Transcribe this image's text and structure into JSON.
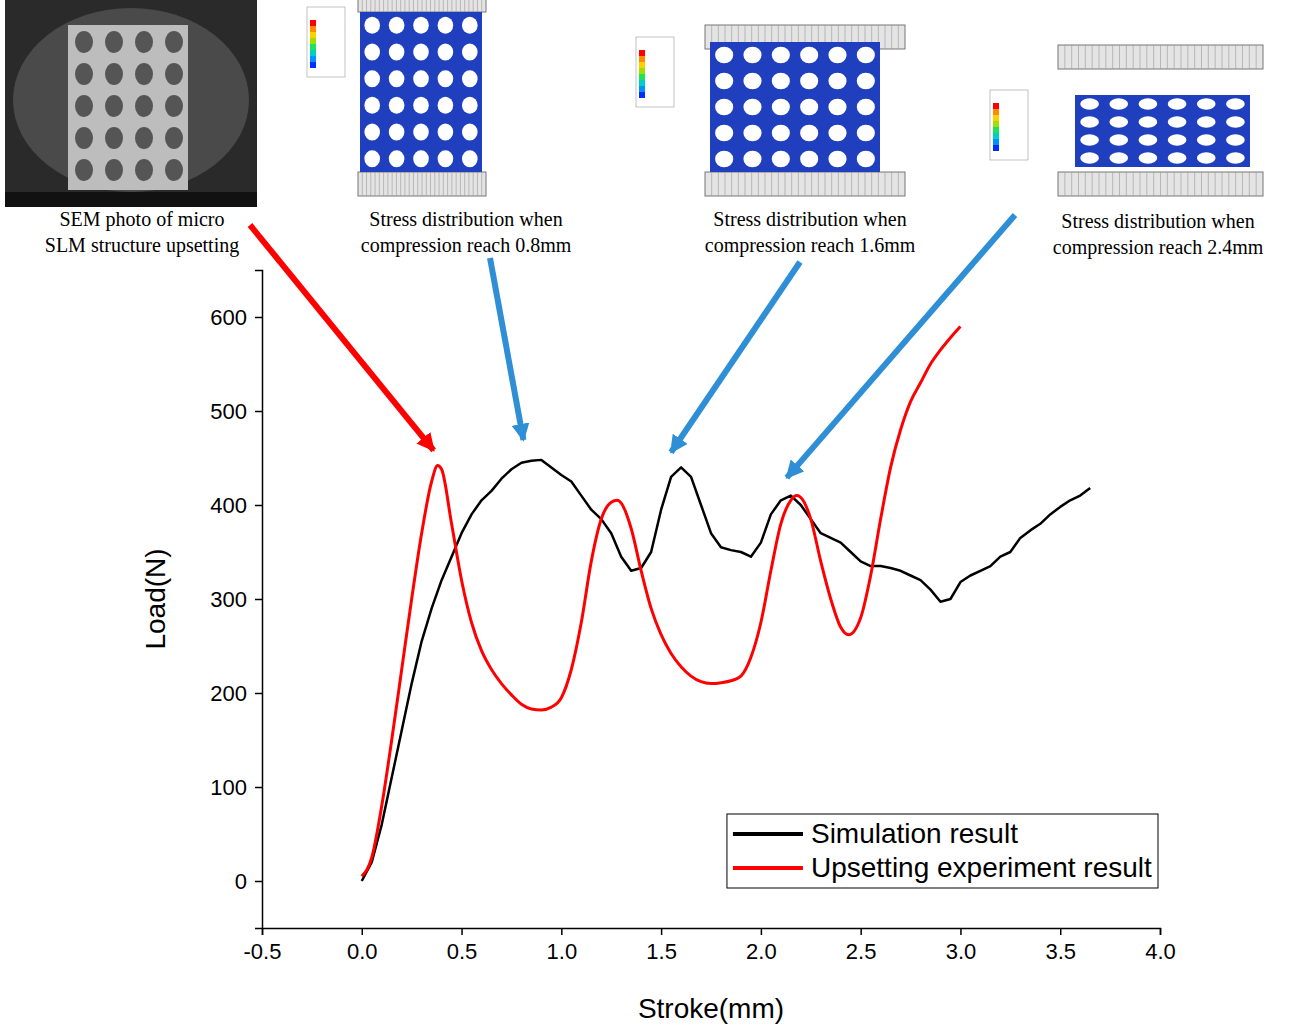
{
  "chart_data": {
    "type": "line",
    "x_label": "Stroke(mm)",
    "y_label": "Load(N)",
    "xlim": [
      -0.5,
      4.0
    ],
    "xticks": [
      -0.5,
      {
        "value": 0,
        "label": "0.0"
      },
      0.5,
      {
        "value": 1,
        "label": "1.0"
      },
      1.5,
      {
        "value": 2,
        "label": "2.0"
      },
      2.5,
      {
        "value": 3,
        "label": "3.0"
      },
      3.5,
      {
        "value": 4,
        "label": "4.0"
      }
    ],
    "ylim": [
      -50,
      650
    ],
    "yticks": [
      0,
      100,
      200,
      300,
      400,
      500,
      600
    ],
    "grid": false,
    "legend": "lower right",
    "series": [
      {
        "name": "Simulation result",
        "color": "#000000",
        "x": [
          0,
          0.05,
          0.1,
          0.15,
          0.2,
          0.25,
          0.3,
          0.35,
          0.4,
          0.45,
          0.5,
          0.55,
          0.6,
          0.65,
          0.7,
          0.75,
          0.8,
          0.85,
          0.9,
          0.95,
          1.0,
          1.05,
          1.1,
          1.15,
          1.2,
          1.25,
          1.3,
          1.35,
          1.4,
          1.45,
          1.5,
          1.55,
          1.6,
          1.65,
          1.7,
          1.75,
          1.8,
          1.85,
          1.9,
          1.95,
          2.0,
          2.05,
          2.1,
          2.15,
          2.2,
          2.25,
          2.3,
          2.35,
          2.4,
          2.45,
          2.5,
          2.55,
          2.6,
          2.65,
          2.7,
          2.75,
          2.8,
          2.85,
          2.9,
          2.95,
          3.0,
          3.05,
          3.1,
          3.15,
          3.2,
          3.25,
          3.3,
          3.35,
          3.4,
          3.45,
          3.5,
          3.55,
          3.6,
          3.65
        ],
        "values": [
          0,
          20,
          60,
          110,
          160,
          210,
          255,
          290,
          320,
          345,
          370,
          390,
          405,
          415,
          428,
          438,
          445,
          447,
          448,
          440,
          432,
          425,
          410,
          395,
          385,
          370,
          345,
          330,
          333,
          350,
          395,
          430,
          440,
          430,
          400,
          370,
          355,
          352,
          350,
          345,
          360,
          390,
          405,
          410,
          400,
          385,
          370,
          365,
          360,
          350,
          340,
          335,
          335,
          333,
          330,
          325,
          320,
          310,
          297,
          300,
          318,
          325,
          330,
          335,
          345,
          350,
          365,
          373,
          380,
          390,
          398,
          405,
          410,
          418
        ]
      },
      {
        "name": "Upsetting experiment result",
        "color": "#ff0000",
        "x": [
          0,
          0.05,
          0.1,
          0.15,
          0.2,
          0.25,
          0.3,
          0.35,
          0.38,
          0.4,
          0.45,
          0.5,
          0.55,
          0.6,
          0.65,
          0.7,
          0.75,
          0.8,
          0.85,
          0.9,
          0.95,
          1.0,
          1.05,
          1.1,
          1.15,
          1.2,
          1.25,
          1.28,
          1.3,
          1.35,
          1.4,
          1.45,
          1.5,
          1.55,
          1.6,
          1.65,
          1.7,
          1.75,
          1.8,
          1.85,
          1.9,
          1.95,
          2.0,
          2.05,
          2.1,
          2.15,
          2.18,
          2.2,
          2.25,
          2.3,
          2.35,
          2.4,
          2.44,
          2.5,
          2.55,
          2.6,
          2.65,
          2.7,
          2.75,
          2.8,
          2.85,
          2.9,
          2.95,
          3.0
        ],
        "values": [
          5,
          25,
          80,
          150,
          225,
          300,
          370,
          425,
          442,
          438,
          380,
          320,
          275,
          245,
          225,
          210,
          198,
          188,
          183,
          182,
          185,
          195,
          225,
          275,
          340,
          385,
          403,
          405,
          402,
          375,
          330,
          290,
          262,
          242,
          228,
          218,
          212,
          210,
          211,
          213,
          218,
          238,
          275,
          330,
          380,
          405,
          410,
          408,
          385,
          340,
          300,
          270,
          262,
          280,
          325,
          385,
          440,
          480,
          510,
          530,
          550,
          565,
          578,
          590
        ]
      }
    ],
    "annotations": [
      {
        "text": [
          "SEM photo of micro",
          "SLM structure upsetting"
        ],
        "x": 0.36,
        "y": 456,
        "color": "#ff0000"
      },
      {
        "text": [
          "Stress distribution when",
          "compression reach 0.8mm"
        ],
        "x": 0.81,
        "y": 467,
        "color": "#2e8fd6"
      },
      {
        "text": [
          "Stress distribution when",
          "compression reach 1.6mm"
        ],
        "x": 1.55,
        "y": 454,
        "color": "#2e8fd6"
      },
      {
        "text": [
          "Stress distribution when",
          "compression reach 2.4mm"
        ],
        "x": 2.13,
        "y": 427,
        "color": "#2e8fd6"
      }
    ]
  }
}
